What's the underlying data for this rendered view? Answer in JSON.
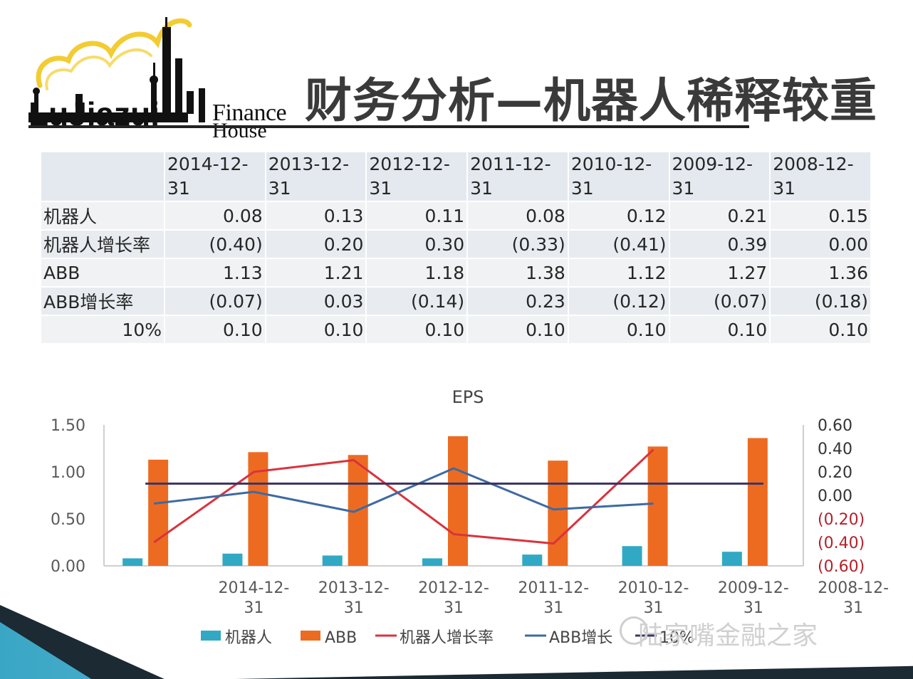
{
  "title": "财务分析—机器人稀释较重",
  "logo": {
    "wordmark": "LuJiazui",
    "finance": "Finance",
    "house": "House"
  },
  "table": {
    "headers": [
      "",
      "2014-12-31",
      "2013-12-31",
      "2012-12-31",
      "2011-12-31",
      "2010-12-31",
      "2009-12-31",
      "2008-12-31"
    ],
    "header_lines": [
      [
        "2014-12-",
        "31"
      ],
      [
        "2013-12-",
        "31"
      ],
      [
        "2012-12-",
        "31"
      ],
      [
        "2011-12-",
        "31"
      ],
      [
        "2010-12-",
        "31"
      ],
      [
        "2009-12-",
        "31"
      ],
      [
        "2008-12-",
        "31"
      ]
    ],
    "rows": [
      {
        "label": "机器人",
        "values": [
          "0.08",
          "0.13",
          "0.11",
          "0.08",
          "0.12",
          "0.21",
          "0.15"
        ]
      },
      {
        "label": "机器人增长率",
        "values": [
          "(0.40)",
          "0.20",
          "0.30",
          "(0.33)",
          "(0.41)",
          "0.39",
          "0.00"
        ]
      },
      {
        "label": "ABB",
        "values": [
          "1.13",
          "1.21",
          "1.18",
          "1.38",
          "1.12",
          "1.27",
          "1.36"
        ]
      },
      {
        "label": "ABB增长率",
        "values": [
          "(0.07)",
          "0.03",
          "(0.14)",
          "0.23",
          "(0.12)",
          "(0.07)",
          "(0.18)"
        ]
      },
      {
        "label": "10%",
        "values": [
          "0.10",
          "0.10",
          "0.10",
          "0.10",
          "0.10",
          "0.10",
          "0.10"
        ]
      }
    ]
  },
  "chart_data": {
    "type": "bar",
    "title": "EPS",
    "categories": [
      "2014-12-31",
      "2013-12-31",
      "2012-12-31",
      "2011-12-31",
      "2010-12-31",
      "2009-12-31",
      "2008-12-31"
    ],
    "category_lines": [
      [
        "2014-12-",
        "31"
      ],
      [
        "2013-12-",
        "31"
      ],
      [
        "2012-12-",
        "31"
      ],
      [
        "2011-12-",
        "31"
      ],
      [
        "2010-12-",
        "31"
      ],
      [
        "2009-12-",
        "31"
      ],
      [
        "2008-12-",
        "31"
      ]
    ],
    "series": [
      {
        "name": "机器人",
        "kind": "bar",
        "axis": "left",
        "color": "#31a9c4",
        "values": [
          0.08,
          0.13,
          0.11,
          0.08,
          0.12,
          0.21,
          0.15
        ]
      },
      {
        "name": "ABB",
        "kind": "bar",
        "axis": "left",
        "color": "#ed6b21",
        "values": [
          1.13,
          1.21,
          1.18,
          1.38,
          1.12,
          1.27,
          1.36
        ]
      },
      {
        "name": "机器人增长率",
        "kind": "line",
        "axis": "right",
        "color": "#d9333d",
        "values": [
          -0.4,
          0.2,
          0.3,
          -0.33,
          -0.41,
          0.39,
          0.0
        ]
      },
      {
        "name": "ABB增长率",
        "kind": "line",
        "axis": "right",
        "color": "#3e6aa3",
        "values": [
          -0.07,
          0.03,
          -0.14,
          0.23,
          -0.12,
          -0.07,
          -0.18
        ]
      },
      {
        "name": "10%",
        "kind": "line",
        "axis": "right",
        "color": "#3d3566",
        "values": [
          0.1,
          0.1,
          0.1,
          0.1,
          0.1,
          0.1,
          0.1
        ]
      }
    ],
    "legend_labels": [
      "机器人",
      "ABB",
      "机器人增长率",
      "ABB增长",
      "10%"
    ],
    "y_left": {
      "ticks": [
        "1.50",
        "1.00",
        "0.50",
        "0.00"
      ],
      "tick_values": [
        1.5,
        1.0,
        0.5,
        0.0
      ],
      "range": [
        0,
        1.5
      ]
    },
    "y_right": {
      "ticks": [
        "0.60",
        "0.40",
        "0.20",
        "0.00",
        "(0.20)",
        "(0.40)",
        "(0.60)"
      ],
      "tick_values": [
        0.6,
        0.4,
        0.2,
        0.0,
        -0.2,
        -0.4,
        -0.6
      ],
      "range": [
        -0.6,
        0.6
      ],
      "positive_color": "#333333",
      "negative_color": "#b5212b"
    },
    "legend_position": "bottom",
    "grid": false
  },
  "watermark": "陆家嘴金融之家"
}
